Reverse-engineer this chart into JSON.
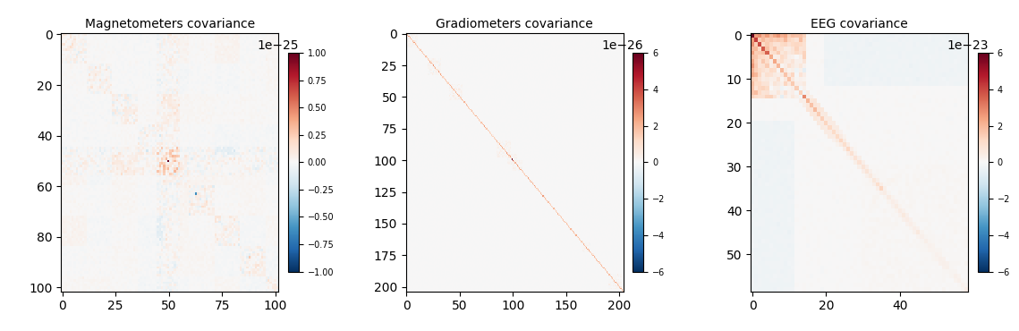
{
  "titles": [
    "Magnetometers covariance",
    "Gradiometers covariance",
    "EEG covariance"
  ],
  "mag_size": 102,
  "grad_size": 204,
  "eeg_size": 59,
  "mag_vmin": -1e-25,
  "mag_vmax": 1e-25,
  "grad_vmin": -6e-26,
  "grad_vmax": 6e-26,
  "eeg_vmin": -6e-23,
  "eeg_vmax": 6e-23,
  "cmap": "RdBu_r",
  "background": "#ffffff"
}
